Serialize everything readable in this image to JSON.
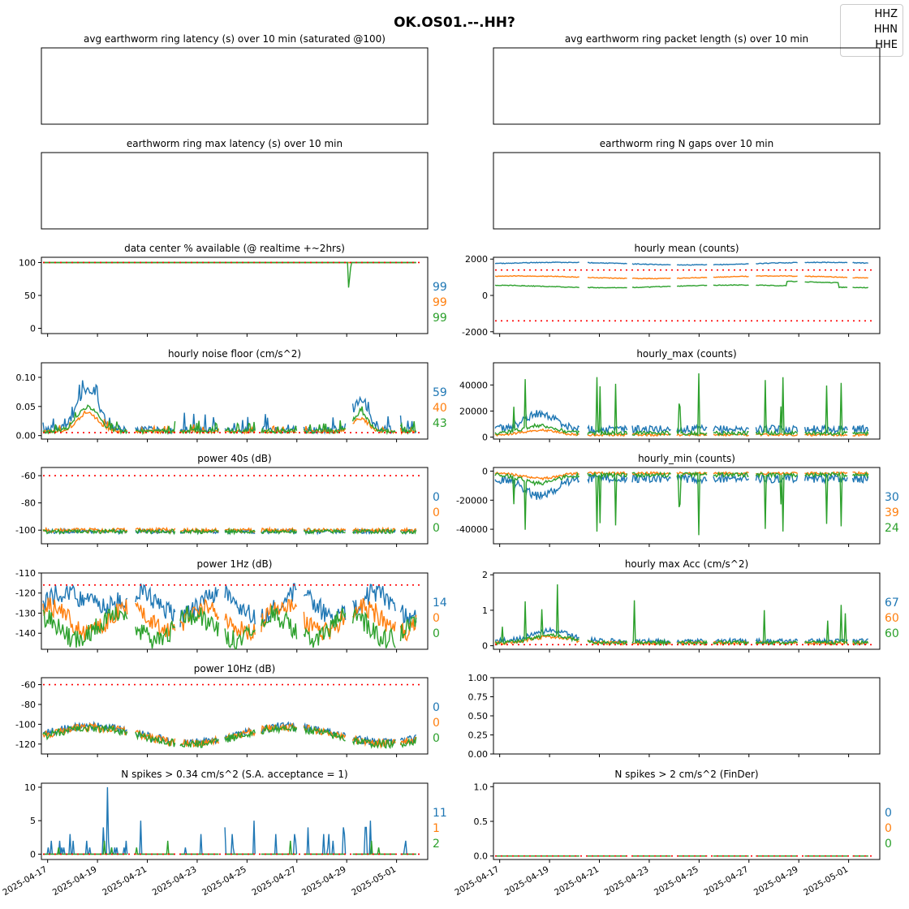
{
  "suptitle": "OK.OS01.--.HH?",
  "legend": [
    "HHZ",
    "HHN",
    "HHE"
  ],
  "colors": {
    "HHZ": "#1f77b4",
    "HHN": "#ff7f0e",
    "HHE": "#2ca02c",
    "threshold": "#ff0000"
  },
  "x_dates": [
    "2025-04-17",
    "2025-04-19",
    "2025-04-21",
    "2025-04-23",
    "2025-04-25",
    "2025-04-27",
    "2025-04-29",
    "2025-05-01"
  ],
  "chart_data": [
    {
      "title": "avg earthworm ring latency (s)   over 10 min (saturated @100)",
      "type": "line",
      "empty": true
    },
    {
      "title": "avg earthworm ring packet length (s)   over 10 min",
      "type": "line",
      "empty": true
    },
    {
      "title": "earthworm ring max latency (s)   over 10 min",
      "type": "line",
      "empty": true
    },
    {
      "title": "earthworm ring N gaps   over 10 min",
      "type": "line",
      "empty": true
    },
    {
      "title": "data center % available (@ realtime +~2hrs)",
      "type": "line",
      "ylim": [
        -8,
        108
      ],
      "yticks": [
        0,
        50,
        100
      ],
      "threshold": 100,
      "side_values": [
        "99",
        "99",
        "99"
      ],
      "gen": "avail"
    },
    {
      "title": "hourly mean (counts)",
      "type": "line",
      "ylim": [
        -2100,
        2100
      ],
      "yticks": [
        -2000,
        0,
        2000
      ],
      "thresholds": [
        1400,
        -1400
      ],
      "side_values": [],
      "gen": "mean"
    },
    {
      "title": "hourly noise floor (cm/s^2)",
      "type": "line",
      "ylim": [
        -0.006,
        0.125
      ],
      "yticks": [
        0.0,
        0.05,
        0.1
      ],
      "ytick_labels": [
        "0.00",
        "0.05",
        "0.10"
      ],
      "threshold": 0.005,
      "side_values": [
        "59",
        "40",
        "43"
      ],
      "gen": "noise"
    },
    {
      "title": "hourly_max (counts)",
      "type": "line",
      "ylim": [
        -1500,
        57000
      ],
      "yticks": [
        0,
        20000,
        40000
      ],
      "side_values": [],
      "gen": "hmax"
    },
    {
      "title": "power 40s (dB)",
      "type": "line",
      "ylim": [
        -110,
        -54
      ],
      "yticks": [
        -100,
        -80,
        -60
      ],
      "threshold": -60,
      "side_values": [
        "0",
        "0",
        "0"
      ],
      "gen": "p40"
    },
    {
      "title": "hourly_min (counts)",
      "type": "line",
      "ylim": [
        -50000,
        2500
      ],
      "yticks": [
        -40000,
        -20000,
        0
      ],
      "side_values": [
        "30",
        "39",
        "24"
      ],
      "gen": "hmin"
    },
    {
      "title": "power 1Hz (dB)",
      "type": "line",
      "ylim": [
        -148,
        -110
      ],
      "yticks": [
        -140,
        -130,
        -120,
        -110
      ],
      "threshold": -116,
      "side_values": [
        "14",
        "0",
        "0"
      ],
      "gen": "p1"
    },
    {
      "title": "hourly max Acc (cm/s^2)",
      "type": "line",
      "ylim": [
        -0.1,
        2.05
      ],
      "yticks": [
        0,
        1,
        2
      ],
      "threshold": 0.03,
      "side_values": [
        "67",
        "60",
        "60"
      ],
      "gen": "acc"
    },
    {
      "title": "power 10Hz (dB)",
      "type": "line",
      "ylim": [
        -130,
        -53
      ],
      "yticks": [
        -120,
        -100,
        -80,
        -60
      ],
      "threshold": -60,
      "side_values": [
        "0",
        "0",
        "0"
      ],
      "gen": "p10"
    },
    {
      "title": "",
      "type": "line",
      "empty": true,
      "ylim": [
        0,
        1
      ],
      "yticks": [
        0.0,
        0.25,
        0.5,
        0.75,
        1.0
      ],
      "ytick_labels": [
        "0.00",
        "0.25",
        "0.50",
        "0.75",
        "1.00"
      ]
    },
    {
      "title": "N spikes > 0.34 cm/s^2 (S.A. acceptance = 1)",
      "type": "line",
      "ylim": [
        -0.8,
        10.6
      ],
      "yticks": [
        0,
        5,
        10
      ],
      "threshold": 0,
      "side_values": [
        "11",
        "1",
        "2"
      ],
      "gen": "spk"
    },
    {
      "title": "N spikes > 2 cm/s^2 (FinDer)",
      "type": "line",
      "ylim": [
        -0.05,
        1.05
      ],
      "yticks": [
        0.0,
        0.5,
        1.0
      ],
      "ytick_labels": [
        "0.0",
        "0.5",
        "1.0"
      ],
      "threshold": 0,
      "side_values": [
        "0",
        "0",
        "0"
      ],
      "gen": "zero"
    }
  ]
}
